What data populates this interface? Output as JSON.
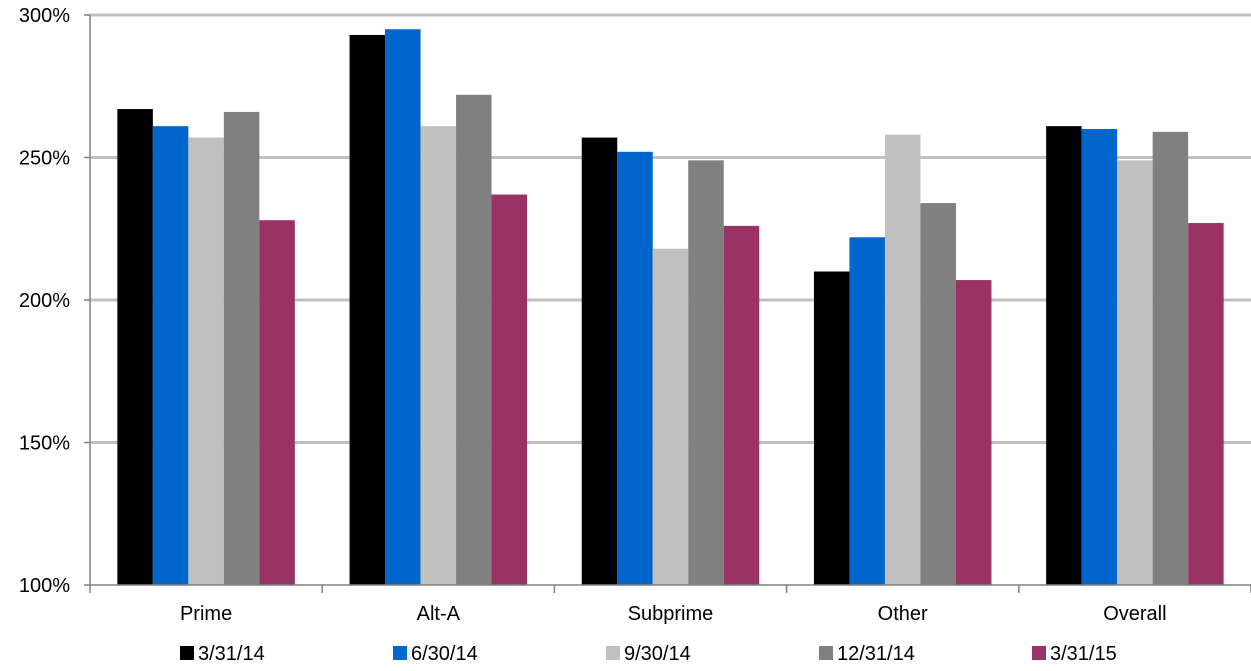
{
  "chart_data": {
    "type": "bar",
    "title": "",
    "xlabel": "",
    "ylabel": "",
    "categories": [
      "Prime",
      "Alt-A",
      "Subprime",
      "Other",
      "Overall"
    ],
    "ylim": [
      100,
      300
    ],
    "yticks": [
      100,
      150,
      200,
      250,
      300
    ],
    "ytick_labels": [
      "100%",
      "150%",
      "200%",
      "250%",
      "300%"
    ],
    "grid": true,
    "legend_position": "bottom",
    "series": [
      {
        "name": "3/31/14",
        "color": "#000000",
        "values": [
          267,
          293,
          257,
          210,
          261
        ]
      },
      {
        "name": "6/30/14",
        "color": "#0066CC",
        "values": [
          261,
          295,
          252,
          222,
          260
        ]
      },
      {
        "name": "9/30/14",
        "color": "#C0C0C0",
        "values": [
          257,
          261,
          218,
          258,
          249
        ]
      },
      {
        "name": "12/31/14",
        "color": "#808080",
        "values": [
          266,
          272,
          249,
          234,
          259
        ]
      },
      {
        "name": "3/31/15",
        "color": "#993366",
        "values": [
          228,
          237,
          226,
          207,
          227
        ]
      }
    ]
  }
}
